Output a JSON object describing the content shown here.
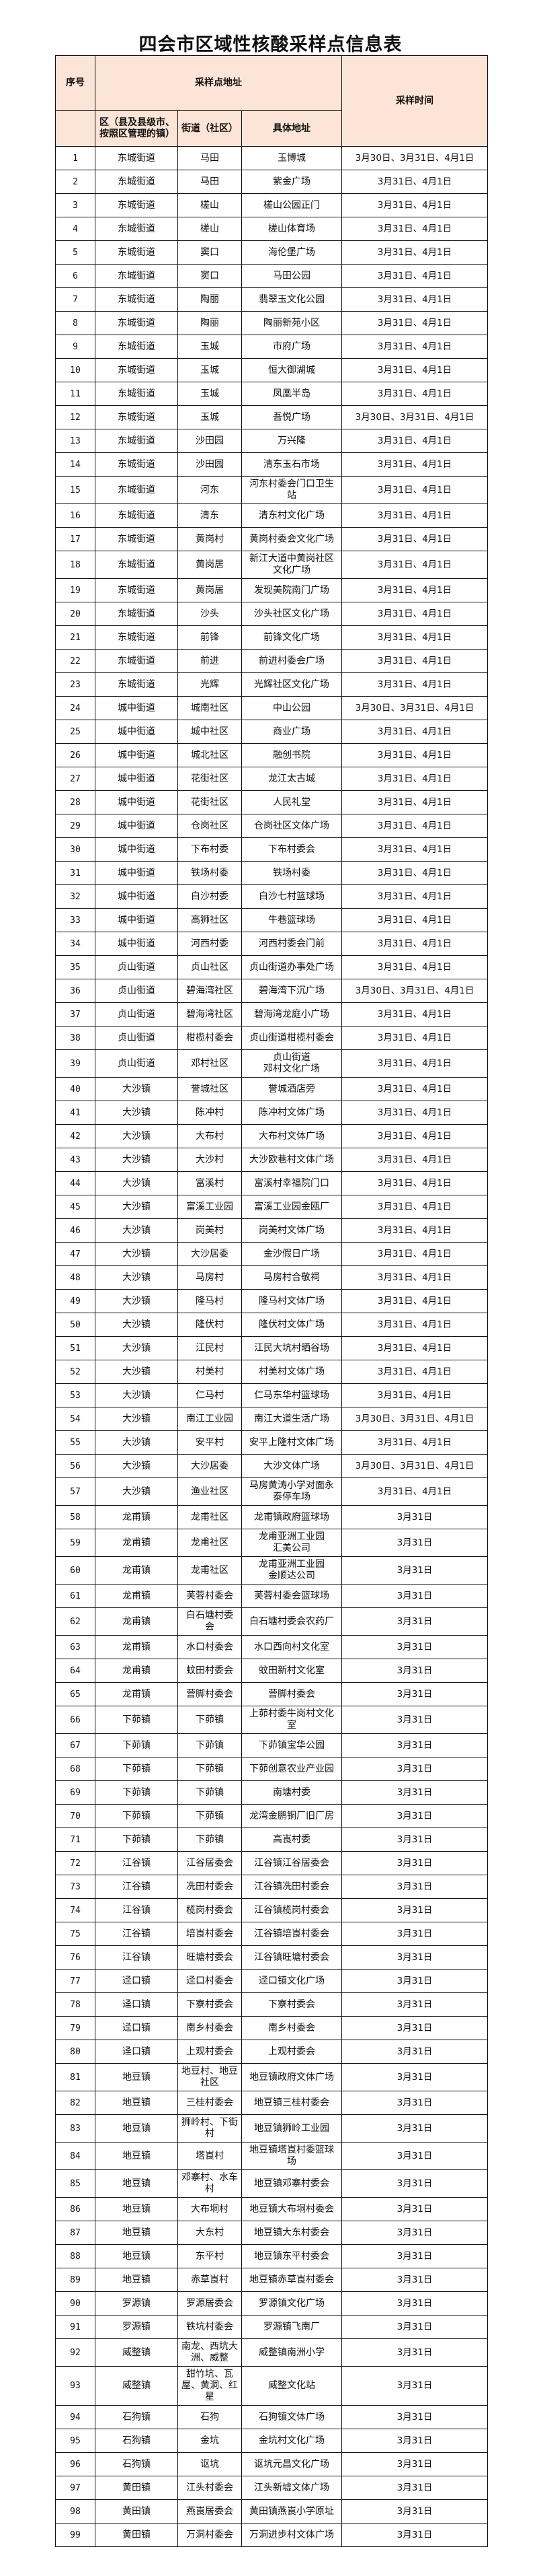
{
  "title": "四会市区域性核酸采样点信息表",
  "header": {
    "seq": "序号",
    "address_group": "采样点地址",
    "time": "采样时间",
    "district": "区（县及县级市、\n按照区管理的镇）",
    "street": "街道（社区）",
    "address": "具体地址"
  },
  "colors": {
    "header_bg": "#fce4d6",
    "border": "#111111"
  },
  "rows": [
    [
      "1",
      "东城街道",
      "马田",
      "玉博城",
      "3月30日、3月31日、4月1日"
    ],
    [
      "2",
      "东城街道",
      "马田",
      "紫金广场",
      "3月31日、4月1日"
    ],
    [
      "3",
      "东城街道",
      "槎山",
      "槎山公园正门",
      "3月31日、4月1日"
    ],
    [
      "4",
      "东城街道",
      "槎山",
      "槎山体育场",
      "3月31日、4月1日"
    ],
    [
      "5",
      "东城街道",
      "窦口",
      "海伦堡广场",
      "3月31日、4月1日"
    ],
    [
      "6",
      "东城街道",
      "窦口",
      "马田公园",
      "3月31日、4月1日"
    ],
    [
      "7",
      "东城街道",
      "陶丽",
      "翡翠玉文化公园",
      "3月31日、4月1日"
    ],
    [
      "8",
      "东城街道",
      "陶丽",
      "陶丽新苑小区",
      "3月31日、4月1日"
    ],
    [
      "9",
      "东城街道",
      "玉城",
      "市府广场",
      "3月31日、4月1日"
    ],
    [
      "10",
      "东城街道",
      "玉城",
      "恒大御湖城",
      "3月31日、4月1日"
    ],
    [
      "11",
      "东城街道",
      "玉城",
      "凤凰半岛",
      "3月31日、4月1日"
    ],
    [
      "12",
      "东城街道",
      "玉城",
      "吾悦广场",
      "3月30日、3月31日、4月1日"
    ],
    [
      "13",
      "东城街道",
      "沙田园",
      "万兴隆",
      "3月31日、4月1日"
    ],
    [
      "14",
      "东城街道",
      "沙田园",
      "清东玉石市场",
      "3月31日、4月1日"
    ],
    [
      "15",
      "东城街道",
      "河东",
      "河东村委会门口卫生\n站",
      "3月31日、4月1日"
    ],
    [
      "16",
      "东城街道",
      "清东",
      "清东村文化广场",
      "3月31日、4月1日"
    ],
    [
      "17",
      "东城街道",
      "黄岗村",
      "黄岗村委会文化广场",
      "3月31日、4月1日"
    ],
    [
      "18",
      "东城街道",
      "黄岗居",
      "新江大道中黄岗社区\n文化广场",
      "3月31日、4月1日"
    ],
    [
      "19",
      "东城街道",
      "黄岗居",
      "发现美院南门广场",
      "3月31日、4月1日"
    ],
    [
      "20",
      "东城街道",
      "沙头",
      "沙头社区文化广场",
      "3月31日、4月1日"
    ],
    [
      "21",
      "东城街道",
      "前锋",
      "前锋文化广场",
      "3月31日、4月1日"
    ],
    [
      "22",
      "东城街道",
      "前进",
      "前进村委会广场",
      "3月31日、4月1日"
    ],
    [
      "23",
      "东城街道",
      "光辉",
      "光辉社区文化广场",
      "3月31日、4月1日"
    ],
    [
      "24",
      "城中街道",
      "城南社区",
      "中山公园",
      "3月30日、3月31日、4月1日"
    ],
    [
      "25",
      "城中街道",
      "城中社区",
      "商业广场",
      "3月31日、4月1日"
    ],
    [
      "26",
      "城中街道",
      "城北社区",
      "融创书院",
      "3月31日、4月1日"
    ],
    [
      "27",
      "城中街道",
      "花街社区",
      "龙江太古城",
      "3月31日、4月1日"
    ],
    [
      "28",
      "城中街道",
      "花街社区",
      "人民礼堂",
      "3月31日、4月1日"
    ],
    [
      "29",
      "城中街道",
      "仓岗社区",
      "仓岗社区文体广场",
      "3月31日、4月1日"
    ],
    [
      "30",
      "城中街道",
      "下布村委",
      "下布村委会",
      "3月31日、4月1日"
    ],
    [
      "31",
      "城中街道",
      "铁场村委",
      "铁场村委",
      "3月31日、4月1日"
    ],
    [
      "32",
      "城中街道",
      "白沙村委",
      "白沙七村篮球场",
      "3月31日、4月1日"
    ],
    [
      "33",
      "城中街道",
      "高狮社区",
      "牛巷篮球场",
      "3月31日、4月1日"
    ],
    [
      "34",
      "城中街道",
      "河西村委",
      "河西村委会门前",
      "3月31日、4月1日"
    ],
    [
      "35",
      "贞山街道",
      "贞山社区",
      "贞山街道办事处广场",
      "3月31日、4月1日"
    ],
    [
      "36",
      "贞山街道",
      "碧海湾社区",
      "碧海湾下沉广场",
      "3月30日、3月31日、4月1日"
    ],
    [
      "37",
      "贞山街道",
      "碧海湾社区",
      "碧海湾龙庭小广场",
      "3月31日、4月1日"
    ],
    [
      "38",
      "贞山街道",
      "柑榄村委会",
      "贞山街道柑榄村委会",
      "3月31日、4月1日"
    ],
    [
      "39",
      "贞山街道",
      "邓村社区",
      "贞山街道\n邓村文化广场",
      "3月31日、4月1日"
    ],
    [
      "40",
      "大沙镇",
      "誉城社区",
      "誉城酒店旁",
      "3月31日、4月1日"
    ],
    [
      "41",
      "大沙镇",
      "陈冲村",
      "陈冲村文体广场",
      "3月31日、4月1日"
    ],
    [
      "42",
      "大沙镇",
      "大布村",
      "大布村文体广场",
      "3月31日、4月1日"
    ],
    [
      "43",
      "大沙镇",
      "大沙村",
      "大沙欧巷村文体广场",
      "3月31日、4月1日"
    ],
    [
      "44",
      "大沙镇",
      "富溪村",
      "富溪村幸福院门口",
      "3月31日、4月1日"
    ],
    [
      "45",
      "大沙镇",
      "富溪工业园",
      "富溪工业园金瓯厂",
      "3月31日、4月1日"
    ],
    [
      "46",
      "大沙镇",
      "岗美村",
      "岗美村文体广场",
      "3月31日、4月1日"
    ],
    [
      "47",
      "大沙镇",
      "大沙居委",
      "金沙假日广场",
      "3月31日、4月1日"
    ],
    [
      "48",
      "大沙镇",
      "马房村",
      "马房村合敬祠",
      "3月31日、4月1日"
    ],
    [
      "49",
      "大沙镇",
      "隆马村",
      "隆马村文体广场",
      "3月31日、4月1日"
    ],
    [
      "50",
      "大沙镇",
      "隆伏村",
      "隆伏村文体广场",
      "3月31日、4月1日"
    ],
    [
      "51",
      "大沙镇",
      "江民村",
      "江民大坑村晒谷场",
      "3月31日、4月1日"
    ],
    [
      "52",
      "大沙镇",
      "村美村",
      "村美村文体广场",
      "3月31日、4月1日"
    ],
    [
      "53",
      "大沙镇",
      "仁马村",
      "仁马东华村篮球场",
      "3月31日、4月1日"
    ],
    [
      "54",
      "大沙镇",
      "南江工业园",
      "南江大道生活广场",
      "3月30日、3月31日、4月1日"
    ],
    [
      "55",
      "大沙镇",
      "安平村",
      "安平上隆村文体广场",
      "3月31日、4月1日"
    ],
    [
      "56",
      "大沙镇",
      "大沙居委",
      "大沙文体广场",
      "3月30日、3月31日、4月1日"
    ],
    [
      "57",
      "大沙镇",
      "渔业社区",
      "马房黄涛小学对面永\n泰停车场",
      "3月31日、4月1日"
    ],
    [
      "58",
      "龙甫镇",
      "龙甫社区",
      "龙甫镇政府篮球场",
      "3月31日"
    ],
    [
      "59",
      "龙甫镇",
      "龙甫社区",
      "龙甫亚洲工业园\n汇美公司",
      "3月31日"
    ],
    [
      "60",
      "龙甫镇",
      "龙甫社区",
      "龙甫亚洲工业园\n金顺达公司",
      "3月31日"
    ],
    [
      "61",
      "龙甫镇",
      "芙蓉村委会",
      "芙蓉村委会篮球场",
      "3月31日"
    ],
    [
      "62",
      "龙甫镇",
      "白石塘村委\n会",
      "白石塘村委会农药厂",
      "3月31日"
    ],
    [
      "63",
      "龙甫镇",
      "水口村委会",
      "水口西向村文化室",
      "3月31日"
    ],
    [
      "64",
      "龙甫镇",
      "蚊田村委会",
      "蚊田新村文化室",
      "3月31日"
    ],
    [
      "65",
      "龙甫镇",
      "营脚村委会",
      "营脚村委会",
      "3月31日"
    ],
    [
      "66",
      "下茆镇",
      "下茆镇",
      "上茆村委牛岗村文化\n室",
      "3月31日"
    ],
    [
      "67",
      "下茆镇",
      "下茆镇",
      "下茆镇宝华公园",
      "3月31日"
    ],
    [
      "68",
      "下茆镇",
      "下茆镇",
      "下茆创意农业产业园",
      "3月31日"
    ],
    [
      "69",
      "下茆镇",
      "下茆镇",
      "南塘村委",
      "3月31日"
    ],
    [
      "70",
      "下茆镇",
      "下茆镇",
      "龙湾金鹏铜厂旧厂房",
      "3月31日"
    ],
    [
      "71",
      "下茆镇",
      "下茆镇",
      "高崀村委",
      "3月31日"
    ],
    [
      "72",
      "江谷镇",
      "江谷居委会",
      "江谷镇江谷居委会",
      "3月31日"
    ],
    [
      "73",
      "江谷镇",
      "冼田村委会",
      "江谷镇冼田村委会",
      "3月31日"
    ],
    [
      "74",
      "江谷镇",
      "榄岗村委会",
      "江谷镇榄岗村委会",
      "3月31日"
    ],
    [
      "75",
      "江谷镇",
      "培崀村委会",
      "江谷镇培崀村委会",
      "3月31日"
    ],
    [
      "76",
      "江谷镇",
      "旺塘村委会",
      "江谷镇旺塘村委会",
      "3月31日"
    ],
    [
      "77",
      "迳口镇",
      "迳口村委会",
      "迳口镇文化广场",
      "3月31日"
    ],
    [
      "78",
      "迳口镇",
      "下寮村委会",
      "下寮村委会",
      "3月31日"
    ],
    [
      "79",
      "迳口镇",
      "南乡村委会",
      "南乡村委会",
      "3月31日"
    ],
    [
      "80",
      "迳口镇",
      "上观村委会",
      "上观村委会",
      "3月31日"
    ],
    [
      "81",
      "地豆镇",
      "地豆村、地豆\n社区",
      "地豆镇政府文体广场",
      "3月31日"
    ],
    [
      "82",
      "地豆镇",
      "三桂村委会",
      "地豆镇三桂村委会",
      "3月31日"
    ],
    [
      "83",
      "地豆镇",
      "狮岭村、下街\n村",
      "地豆镇狮岭工业园",
      "3月31日"
    ],
    [
      "84",
      "地豆镇",
      "塔崀村",
      "地豆镇塔崀村委篮球\n场",
      "3月31日"
    ],
    [
      "85",
      "地豆镇",
      "邓寨村、水车\n村",
      "地豆镇邓寨村委会",
      "3月31日"
    ],
    [
      "86",
      "地豆镇",
      "大布垌村",
      "地豆镇大布垌村委会",
      "3月31日"
    ],
    [
      "87",
      "地豆镇",
      "大东村",
      "地豆镇大东村委会",
      "3月31日"
    ],
    [
      "88",
      "地豆镇",
      "东平村",
      "地豆镇东平村委会",
      "3月31日"
    ],
    [
      "89",
      "地豆镇",
      "赤草崀村",
      "地豆镇赤草崀村委会",
      "3月31日"
    ],
    [
      "90",
      "罗源镇",
      "罗源居委会",
      "罗源镇文化广场",
      "3月31日"
    ],
    [
      "91",
      "罗源镇",
      "铁坑村委会",
      "罗源镇飞南厂",
      "3月31日"
    ],
    [
      "92",
      "威整镇",
      "南龙、西坑大\n洲、威整",
      "威整镇南洲小学",
      "3月31日"
    ],
    [
      "93",
      "威整镇",
      "甜竹坑、瓦\n屋、黄洞、红\n星",
      "威整文化站",
      "3月31日"
    ],
    [
      "94",
      "石狗镇",
      "石狗",
      "石狗镇文体广场",
      "3月31日"
    ],
    [
      "95",
      "石狗镇",
      "金坑",
      "金坑村文化广场",
      "3月31日"
    ],
    [
      "96",
      "石狗镇",
      "讴坑",
      "讴坑元昌文化广场",
      "3月31日"
    ],
    [
      "97",
      "黄田镇",
      "江头村委会",
      "江头新墟文体广场",
      "3月31日"
    ],
    [
      "98",
      "黄田镇",
      "燕崀居委会",
      "黄田镇燕崀小学原址",
      "3月31日"
    ],
    [
      "99",
      "黄田镇",
      "万洞村委会",
      "万洞进步村文体广场",
      "3月31日"
    ]
  ]
}
